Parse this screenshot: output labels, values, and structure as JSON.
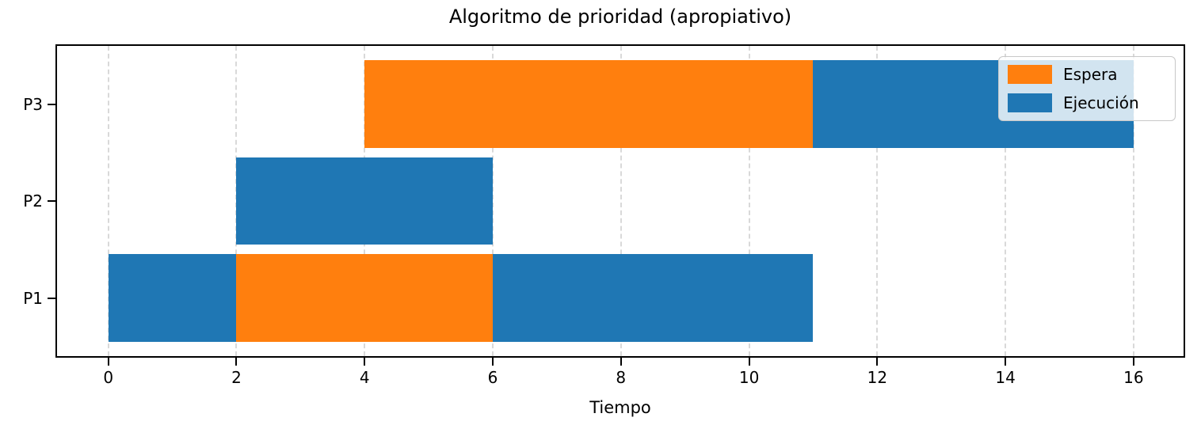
{
  "chart_data": {
    "type": "bar",
    "variant": "gantt-horizontal",
    "title": "Algoritmo de prioridad (apropiativo)",
    "xlabel": "Tiempo",
    "ylabel": "",
    "xlim": [
      -0.8,
      16.78
    ],
    "ylim": [
      0.4,
      3.6
    ],
    "x_ticks": [
      0,
      2,
      4,
      6,
      8,
      10,
      12,
      14,
      16
    ],
    "grid": "vertical-dashed",
    "grid_color": "#d9d9d9",
    "bar_height": 0.9,
    "colors": {
      "Espera": "#ff7f0e",
      "Ejecución": "#1f77b4"
    },
    "legend": [
      {
        "label": "Espera",
        "color": "#ff7f0e"
      },
      {
        "label": "Ejecución",
        "color": "#1f77b4"
      }
    ],
    "legend_position": "upper-right",
    "rows": [
      {
        "label": "P3",
        "y": 3,
        "segments": [
          {
            "state": "Espera",
            "start": 4,
            "end": 11
          },
          {
            "state": "Ejecución",
            "start": 11,
            "end": 16
          }
        ]
      },
      {
        "label": "P2",
        "y": 2,
        "segments": [
          {
            "state": "Ejecución",
            "start": 2,
            "end": 6
          }
        ]
      },
      {
        "label": "P1",
        "y": 1,
        "segments": [
          {
            "state": "Ejecución",
            "start": 0,
            "end": 2
          },
          {
            "state": "Espera",
            "start": 2,
            "end": 6
          },
          {
            "state": "Ejecución",
            "start": 6,
            "end": 11
          }
        ]
      }
    ]
  }
}
